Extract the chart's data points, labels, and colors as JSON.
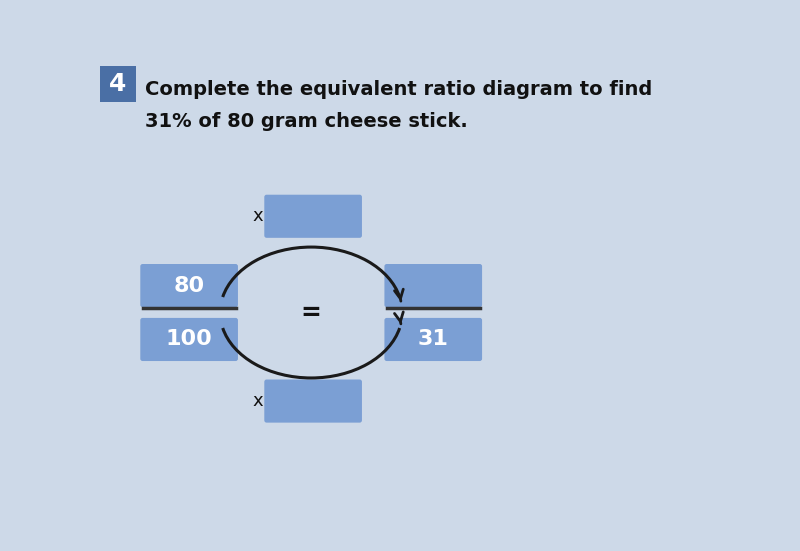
{
  "title_line1": "Complete the equivalent ratio diagram to find",
  "title_line2": "31% of 80 gram cheese stick.",
  "question_number": "4",
  "box_color": "#7b9fd4",
  "text_color": "#111111",
  "left_top_value": "80",
  "left_bottom_value": "100",
  "right_bottom_value": "31",
  "top_blank_label": "x",
  "bottom_blank_label": "x",
  "equal_sign": "=",
  "arrow_color": "#1a1a1a",
  "line_color": "#333333",
  "header_bg": "#4a6fa5",
  "header_text": "4",
  "page_bg": "#cdd9e8",
  "title_bg": "#c8d8ea"
}
